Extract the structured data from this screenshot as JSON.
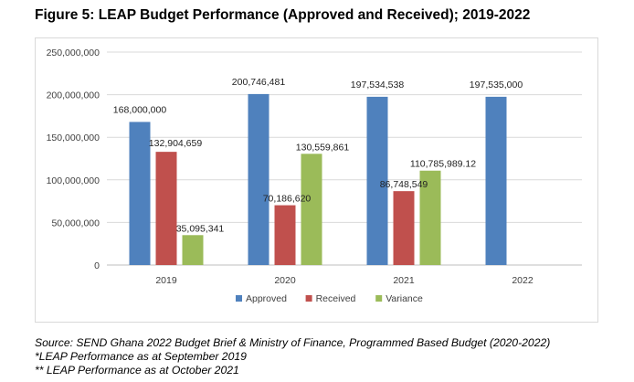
{
  "title": "Figure 5: LEAP Budget Performance (Approved and Received); 2019-2022",
  "chart_data": {
    "type": "bar",
    "title": "",
    "xlabel": "",
    "ylabel": "",
    "ylim": [
      0,
      250000000
    ],
    "ytick_values": [
      0,
      50000000,
      100000000,
      150000000,
      200000000,
      250000000
    ],
    "ytick_labels": [
      "0",
      "50,000,000",
      "100,000,000",
      "150,000,000",
      "200,000,000",
      "250,000,000"
    ],
    "categories": [
      "2019",
      "2020",
      "2021",
      "2022"
    ],
    "legend_position": "bottom",
    "grid": true,
    "series": [
      {
        "name": "Approved",
        "color": "#4f81bd",
        "values": [
          168000000,
          200746481,
          197534538,
          197535000
        ],
        "labels": [
          "168,000,000",
          "200,746,481",
          "197,534,538",
          "197,535,000"
        ]
      },
      {
        "name": "Received",
        "color": "#c0504d",
        "values": [
          132904659,
          70186620,
          86748549,
          null
        ],
        "labels": [
          "132,904,659",
          "70,186,620",
          "86,748,549",
          null
        ]
      },
      {
        "name": "Variance",
        "color": "#9bbb59",
        "values": [
          35095341,
          130559861,
          110785989.12,
          null
        ],
        "labels": [
          "35,095,341",
          "130,559,861",
          "110,785,989.12",
          null
        ]
      }
    ]
  },
  "source": {
    "line1": "Source: SEND Ghana 2022 Budget Brief & Ministry of Finance, Programmed Based Budget (2020-2022)",
    "line2": "*LEAP Performance as at September 2019",
    "line3": "** LEAP Performance as at October 2021"
  }
}
